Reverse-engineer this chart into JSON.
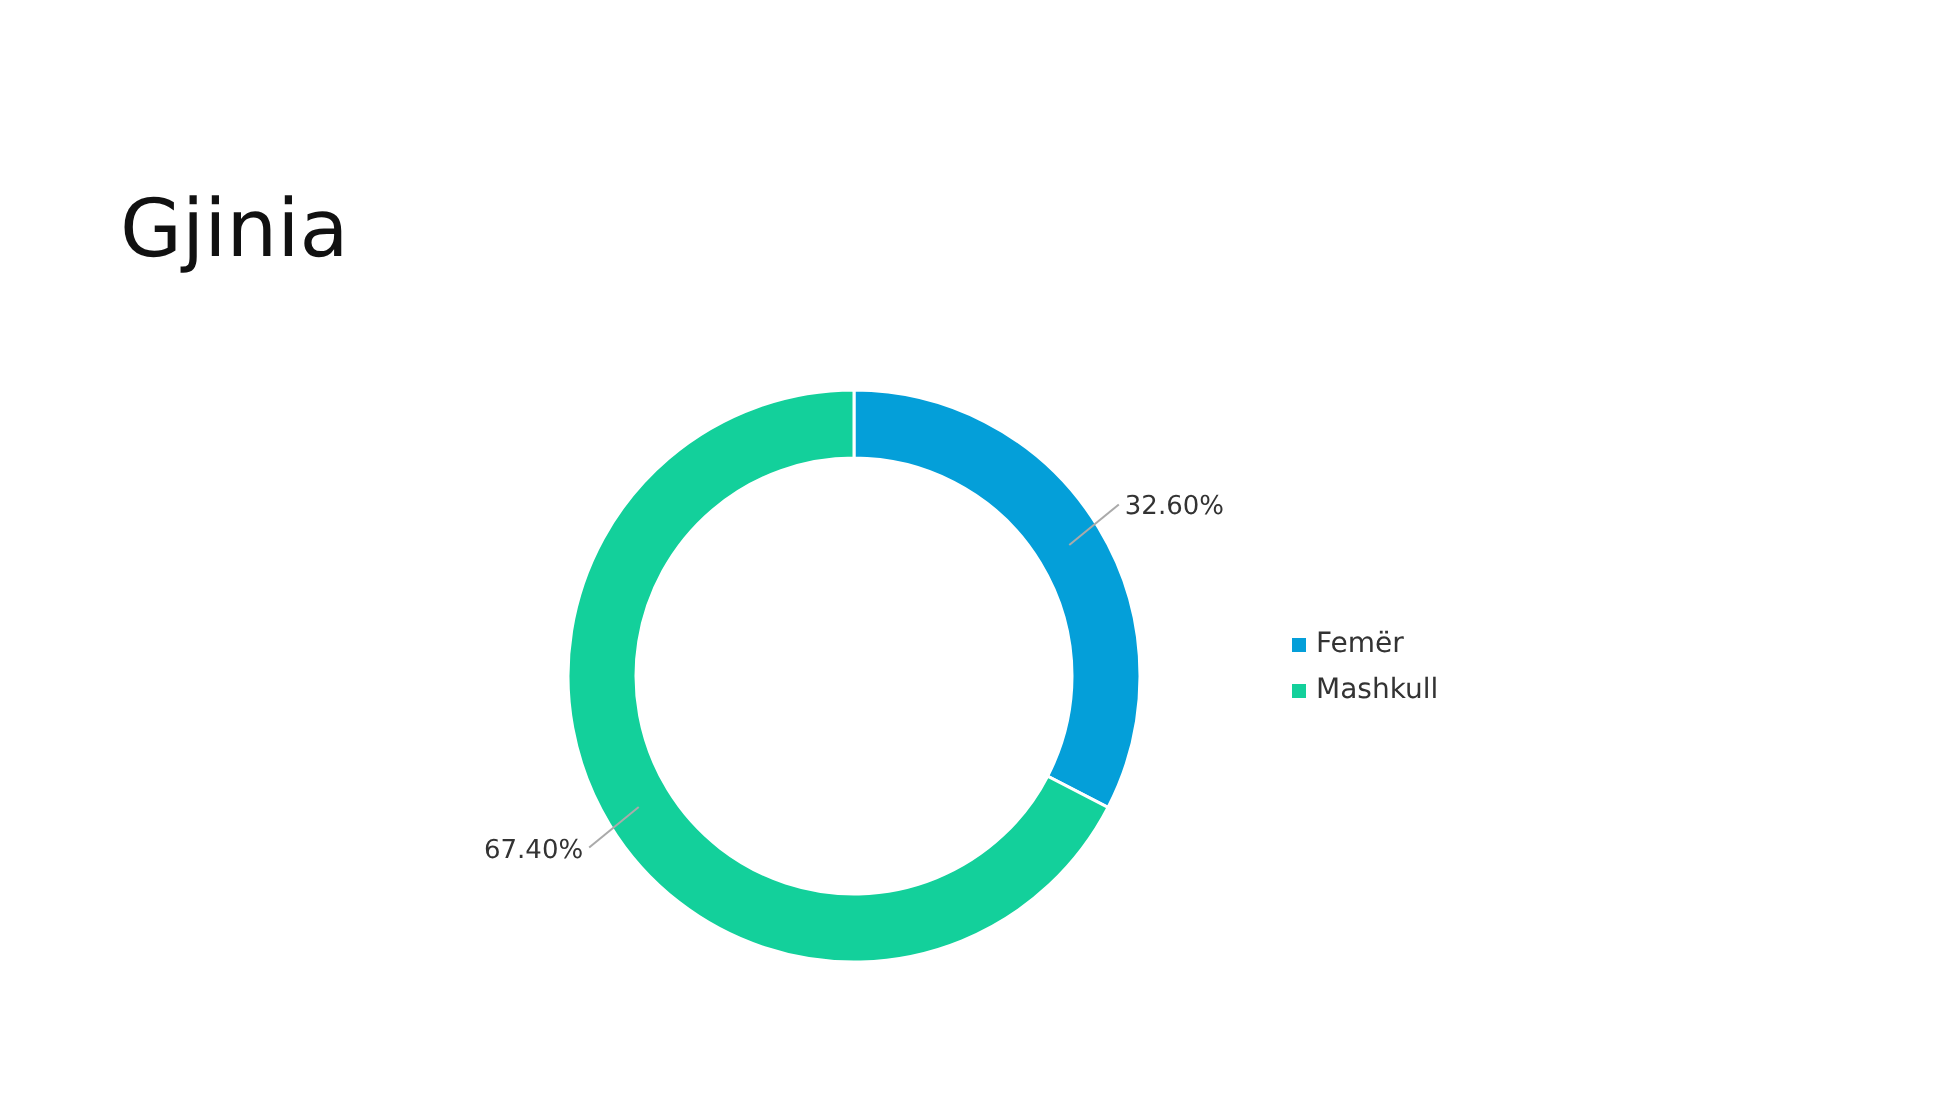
{
  "chart_data": {
    "type": "donut",
    "title": "Gjinia",
    "categories": [
      "Femër",
      "Mashkull"
    ],
    "values": [
      32.6,
      67.4
    ],
    "colors": [
      "#049fd9",
      "#13d09b"
    ],
    "value_labels": [
      "32.60%",
      "67.40%"
    ],
    "legend": "right"
  }
}
